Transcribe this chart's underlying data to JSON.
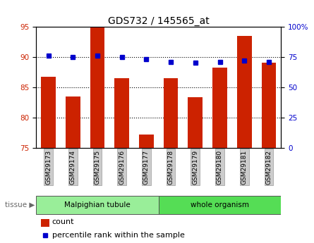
{
  "title": "GDS732 / 145565_at",
  "samples": [
    "GSM29173",
    "GSM29174",
    "GSM29175",
    "GSM29176",
    "GSM29177",
    "GSM29178",
    "GSM29179",
    "GSM29180",
    "GSM29181",
    "GSM29182"
  ],
  "count_values": [
    86.7,
    83.5,
    95.0,
    86.5,
    77.2,
    86.5,
    83.3,
    88.2,
    93.5,
    89.0
  ],
  "percentile_values": [
    76,
    75,
    76,
    75,
    73,
    71,
    70,
    71,
    72,
    71
  ],
  "left_ylim": [
    75,
    95
  ],
  "right_ylim": [
    0,
    100
  ],
  "left_yticks": [
    75,
    80,
    85,
    90,
    95
  ],
  "right_yticks": [
    0,
    25,
    50,
    75,
    100
  ],
  "right_yticklabels": [
    "0",
    "25",
    "50",
    "75",
    "100%"
  ],
  "bar_color": "#cc2200",
  "dot_color": "#0000cc",
  "tissue_groups": [
    {
      "label": "Malpighian tubule",
      "start": 0,
      "end": 5,
      "color": "#99ee99"
    },
    {
      "label": "whole organism",
      "start": 5,
      "end": 10,
      "color": "#55dd55"
    }
  ],
  "tissue_label": "tissue",
  "legend_count": "count",
  "legend_pct": "percentile rank within the sample",
  "bar_width": 0.6,
  "tick_bg_color": "#cccccc",
  "plot_bg_color": "#ffffff"
}
